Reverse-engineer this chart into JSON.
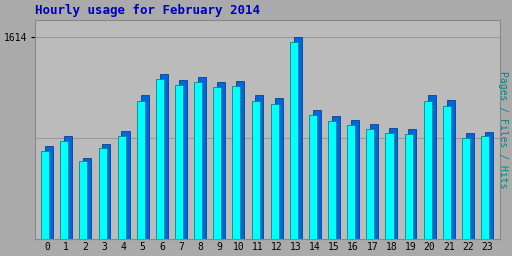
{
  "title": "Hourly usage for February 2014",
  "hours": [
    0,
    1,
    2,
    3,
    4,
    5,
    6,
    7,
    8,
    9,
    10,
    11,
    12,
    13,
    14,
    15,
    16,
    17,
    18,
    19,
    20,
    21,
    22,
    23
  ],
  "hits": [
    740,
    820,
    650,
    760,
    860,
    1150,
    1320,
    1270,
    1295,
    1255,
    1265,
    1150,
    1125,
    1614,
    1030,
    985,
    950,
    915,
    885,
    875,
    1150,
    1110,
    845,
    855
  ],
  "pages": [
    700,
    785,
    620,
    725,
    825,
    1100,
    1280,
    1230,
    1255,
    1215,
    1220,
    1100,
    1080,
    1570,
    990,
    945,
    910,
    875,
    850,
    840,
    1100,
    1065,
    810,
    820
  ],
  "bar_color_cyan": "#00FFFF",
  "bar_color_blue": "#0066DD",
  "bar_edge_cyan": "#008888",
  "bar_edge_blue": "#004499",
  "background_color": "#BBBBBB",
  "fig_color": "#AAAAAA",
  "title_color": "#0000BB",
  "right_label_color": "#008888",
  "grid_color": "#999999",
  "ylim": [
    0,
    1750
  ],
  "yticks": [
    1614
  ],
  "ytick_labels": [
    "1614"
  ]
}
